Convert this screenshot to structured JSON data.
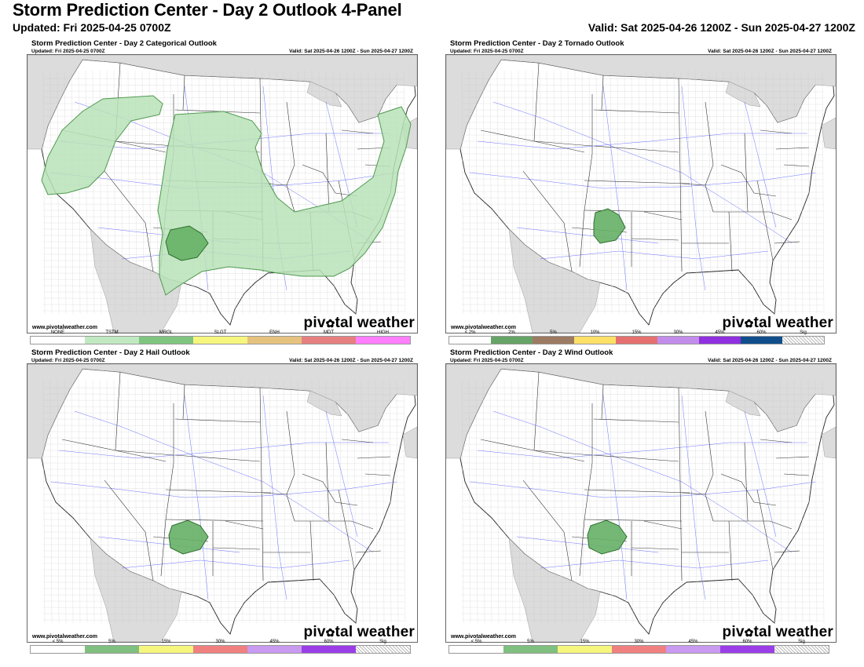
{
  "header": {
    "title": "Storm Prediction Center - Day 2 Outlook 4-Panel",
    "updated": "Updated: Fri 2025-04-25 0700Z",
    "valid": "Valid: Sat 2025-04-26 1200Z - Sun 2025-04-27 1200Z"
  },
  "panels": [
    {
      "title": "Storm Prediction Center - Day 2 Categorical Outlook",
      "updated": "Updated: Fri 2025-04-25 0700Z",
      "valid": "Valid: Sat 2025-04-26 1200Z - Sun 2025-04-27 1200Z",
      "site": "www.pivotalweather.com",
      "brand_a": "piv",
      "brand_b": "tal weather",
      "legend": [
        {
          "label": "NONE",
          "color": "#ffffff"
        },
        {
          "label": "TSTM",
          "color": "#c1e9c1"
        },
        {
          "label": "MRGL",
          "color": "#7fc57f"
        },
        {
          "label": "SLGT",
          "color": "#f6f67f"
        },
        {
          "label": "ENH",
          "color": "#e6c27f"
        },
        {
          "label": "MDT",
          "color": "#e67f7f"
        },
        {
          "label": "HIGH",
          "color": "#ff7fff"
        }
      ]
    },
    {
      "title": "Storm Prediction Center - Day 2 Tornado Outlook",
      "updated": "Updated: Fri 2025-04-25 0700Z",
      "valid": "Valid: Sat 2025-04-26 1200Z - Sun 2025-04-27 1200Z",
      "site": "www.pivotalweather.com",
      "brand_a": "piv",
      "brand_b": "tal weather",
      "legend": [
        {
          "label": "< 2%",
          "color": "#ffffff"
        },
        {
          "label": "2%",
          "color": "#66a366"
        },
        {
          "label": "5%",
          "color": "#9d7a63"
        },
        {
          "label": "10%",
          "color": "#ffe066"
        },
        {
          "label": "15%",
          "color": "#e67070"
        },
        {
          "label": "30%",
          "color": "#c28dea"
        },
        {
          "label": "45%",
          "color": "#8f2fe0"
        },
        {
          "label": "60%",
          "color": "#104e8b"
        },
        {
          "label": "Sig",
          "color": "hatch"
        }
      ]
    },
    {
      "title": "Storm Prediction Center - Day 2 Hail Outlook",
      "updated": "Updated: Fri 2025-04-25 0700Z",
      "valid": "Valid: Sat 2025-04-26 1200Z - Sun 2025-04-27 1200Z",
      "site": "www.pivotalweather.com",
      "brand_a": "piv",
      "brand_b": "tal weather",
      "legend": [
        {
          "label": "< 5%",
          "color": "#ffffff"
        },
        {
          "label": "5%",
          "color": "#7fbf7f"
        },
        {
          "label": "15%",
          "color": "#f6f67f"
        },
        {
          "label": "30%",
          "color": "#f08080"
        },
        {
          "label": "45%",
          "color": "#c89af0"
        },
        {
          "label": "60%",
          "color": "#9b3ee8"
        },
        {
          "label": "Sig",
          "color": "hatch"
        }
      ]
    },
    {
      "title": "Storm Prediction Center - Day 2 Wind Outlook",
      "updated": "Updated: Fri 2025-04-25 0700Z",
      "valid": "Valid: Sat 2025-04-26 1200Z - Sun 2025-04-27 1200Z",
      "site": "www.pivotalweather.com",
      "brand_a": "piv",
      "brand_b": "tal weather",
      "legend": [
        {
          "label": "< 5%",
          "color": "#ffffff"
        },
        {
          "label": "5%",
          "color": "#7fbf7f"
        },
        {
          "label": "15%",
          "color": "#f6f67f"
        },
        {
          "label": "30%",
          "color": "#f08080"
        },
        {
          "label": "45%",
          "color": "#c89af0"
        },
        {
          "label": "60%",
          "color": "#9b3ee8"
        },
        {
          "label": "Sig",
          "color": "hatch"
        }
      ]
    }
  ],
  "colors": {
    "tstm_fill": "#b8e2b8",
    "tstm_edge": "#4f9a4f",
    "mrgl_fill": "#66b066",
    "risk_fill": "#66b066",
    "land_outside": "#dcdcdc",
    "water": "#ffffff"
  }
}
